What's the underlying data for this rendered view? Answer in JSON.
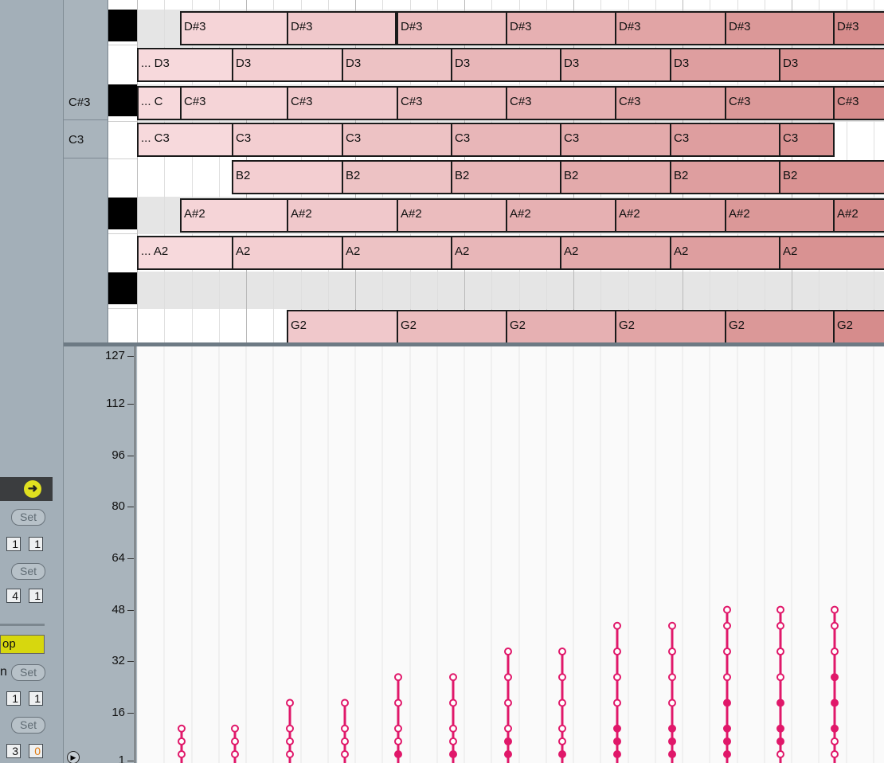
{
  "clip_panel": {
    "launch_icon": "arrow-right-icon",
    "launch_glyph": "➜",
    "set_label": "Set",
    "start_values": [
      "1",
      "1"
    ],
    "end_values": [
      "4",
      "1"
    ],
    "loop_label": "op",
    "position_label": "n",
    "loop_start_values": [
      "1",
      "1"
    ],
    "loop_length_values": [
      "3",
      "0"
    ]
  },
  "piano_roll": {
    "key_labels": [
      "C#3",
      "C3"
    ],
    "note_color_light": "#f7d9dc",
    "note_color_dark": "#d48686",
    "rows": [
      {
        "pitch": "D#3",
        "notes": [
          {
            "label": "D#3"
          },
          {
            "label": "D#3"
          },
          {
            "label": "D#3"
          },
          {
            "label": "D#3"
          },
          {
            "label": "D#3"
          },
          {
            "label": "D#3"
          },
          {
            "label": "D#3"
          }
        ]
      },
      {
        "pitch": "D3",
        "notes": [
          {
            "label": "... D3"
          },
          {
            "label": "D3"
          },
          {
            "label": "D3"
          },
          {
            "label": "D3"
          },
          {
            "label": "D3"
          },
          {
            "label": "D3"
          },
          {
            "label": "D3"
          }
        ]
      },
      {
        "pitch": "C#3",
        "notes": [
          {
            "label": "... C"
          },
          {
            "label": "C#3"
          },
          {
            "label": "C#3"
          },
          {
            "label": "C#3"
          },
          {
            "label": "C#3"
          },
          {
            "label": "C#3"
          },
          {
            "label": "C#3"
          },
          {
            "label": "C#3"
          }
        ]
      },
      {
        "pitch": "C3",
        "notes": [
          {
            "label": "... C3"
          },
          {
            "label": "C3"
          },
          {
            "label": "C3"
          },
          {
            "label": "C3"
          },
          {
            "label": "C3"
          },
          {
            "label": "C3"
          },
          {
            "label": "C3"
          }
        ]
      },
      {
        "pitch": "B2",
        "notes": [
          {
            "label": "B2"
          },
          {
            "label": "B2"
          },
          {
            "label": "B2"
          },
          {
            "label": "B2"
          },
          {
            "label": "B2"
          },
          {
            "label": "B2"
          }
        ]
      },
      {
        "pitch": "A#2",
        "notes": [
          {
            "label": "A#2"
          },
          {
            "label": "A#2"
          },
          {
            "label": "A#2"
          },
          {
            "label": "A#2"
          },
          {
            "label": "A#2"
          },
          {
            "label": "A#2"
          },
          {
            "label": "A#2"
          }
        ]
      },
      {
        "pitch": "A2",
        "notes": [
          {
            "label": "... A2"
          },
          {
            "label": "A2"
          },
          {
            "label": "A2"
          },
          {
            "label": "A2"
          },
          {
            "label": "A2"
          },
          {
            "label": "A2"
          },
          {
            "label": "A2"
          }
        ]
      },
      {
        "pitch": "G#2",
        "notes": []
      },
      {
        "pitch": "G2",
        "notes": [
          {
            "label": "G2"
          },
          {
            "label": "G2"
          },
          {
            "label": "G2"
          },
          {
            "label": "G2"
          },
          {
            "label": "G2"
          },
          {
            "label": "G2"
          }
        ]
      }
    ]
  },
  "velocity": {
    "ticks": [
      "127",
      "112",
      "96",
      "80",
      "64",
      "48",
      "32",
      "16",
      "1"
    ],
    "stem_color": "#e0186a",
    "columns": [
      {
        "values": [
          1,
          5,
          9
        ],
        "filled": []
      },
      {
        "values": [
          1,
          5,
          9
        ],
        "filled": []
      },
      {
        "values": [
          1,
          5,
          9,
          17
        ],
        "filled": []
      },
      {
        "values": [
          1,
          5,
          9,
          17
        ],
        "filled": []
      },
      {
        "values": [
          1,
          5,
          9,
          17,
          25
        ],
        "filled": [
          1
        ]
      },
      {
        "values": [
          1,
          5,
          9,
          17,
          25
        ],
        "filled": [
          1
        ]
      },
      {
        "values": [
          1,
          5,
          9,
          17,
          25,
          33
        ],
        "filled": [
          1,
          5
        ]
      },
      {
        "values": [
          1,
          5,
          9,
          17,
          25,
          33
        ],
        "filled": [
          1
        ]
      },
      {
        "values": [
          1,
          5,
          9,
          17,
          25,
          33,
          41
        ],
        "filled": [
          1,
          5,
          9
        ]
      },
      {
        "values": [
          1,
          5,
          9,
          17,
          25,
          33,
          41
        ],
        "filled": [
          1,
          5,
          9
        ]
      },
      {
        "values": [
          1,
          5,
          9,
          17,
          25,
          33,
          41,
          46
        ],
        "filled": [
          1,
          5,
          9,
          17
        ]
      },
      {
        "values": [
          1,
          5,
          9,
          17,
          25,
          33,
          41,
          46
        ],
        "filled": [
          5,
          9,
          17
        ]
      },
      {
        "values": [
          1,
          5,
          9,
          17,
          25,
          33,
          41,
          46
        ],
        "filled": [
          9,
          17,
          25
        ]
      }
    ]
  }
}
